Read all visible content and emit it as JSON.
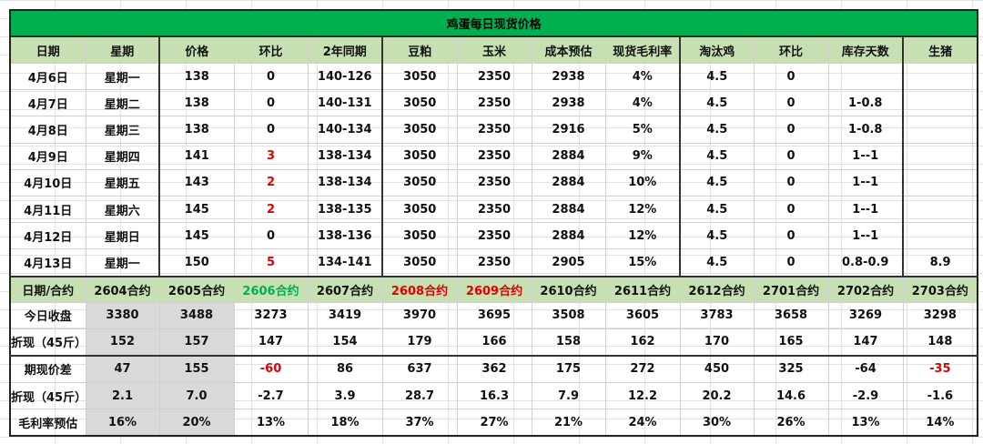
{
  "title": "鸡蛋每日现货价格",
  "daily_headers": [
    "日期",
    "星期",
    "价格",
    "环比",
    "2年同期",
    "豆粕",
    "玉米",
    "成本预估",
    "现货毛利率",
    "淘汰鸡",
    "环比",
    "库存天数",
    "生猪"
  ],
  "daily_rows": [
    [
      "4月6日",
      "星期一",
      "138",
      "0",
      "140-126",
      "3050",
      "2350",
      "2938",
      "4%",
      "4.5",
      "0",
      "",
      ""
    ],
    [
      "4月7日",
      "星期二",
      "138",
      "0",
      "140-131",
      "3050",
      "2350",
      "2938",
      "4%",
      "4.5",
      "0",
      "1-0.8",
      ""
    ],
    [
      "4月8日",
      "星期三",
      "138",
      "0",
      "140-134",
      "3050",
      "2350",
      "2916",
      "5%",
      "4.5",
      "0",
      "1-0.8",
      ""
    ],
    [
      "4月9日",
      "星期四",
      "141",
      "3",
      "138-134",
      "3050",
      "2350",
      "2884",
      "9%",
      "4.5",
      "0",
      "1--1",
      ""
    ],
    [
      "4月10日",
      "星期五",
      "143",
      "2",
      "138-134",
      "3050",
      "2350",
      "2884",
      "10%",
      "4.5",
      "0",
      "1--1",
      ""
    ],
    [
      "4月11日",
      "星期六",
      "145",
      "2",
      "138-135",
      "3050",
      "2350",
      "2884",
      "12%",
      "4.5",
      "0",
      "1--1",
      ""
    ],
    [
      "4月12日",
      "星期日",
      "145",
      "0",
      "138-136",
      "3050",
      "2350",
      "2884",
      "12%",
      "4.5",
      "0",
      "1--1",
      ""
    ],
    [
      "4月13日",
      "星期一",
      "150",
      "5",
      "134-141",
      "3050",
      "2350",
      "2905",
      "15%",
      "4.5",
      "0",
      "0.8-0.9",
      "8.9"
    ]
  ],
  "futures_headers": [
    "日期/合约",
    "2604合约",
    "2605合约",
    "2606合约",
    "2607合约",
    "2608合约",
    "2609合约",
    "2610合约",
    "2611合约",
    "2612合约",
    "2701合约",
    "2702合约",
    "2703合约"
  ],
  "futures_rows": [
    [
      "今日收盘",
      "3380",
      "3488",
      "3273",
      "3419",
      "3970",
      "3695",
      "3508",
      "3605",
      "3783",
      "3658",
      "3269",
      "3298"
    ],
    [
      "折现（45斤）",
      "152",
      "157",
      "147",
      "154",
      "179",
      "166",
      "158",
      "162",
      "170",
      "165",
      "147",
      "148"
    ],
    [
      "期现价差",
      "47",
      "155",
      "-60",
      "86",
      "637",
      "362",
      "175",
      "272",
      "450",
      "325",
      "-64",
      "-35"
    ],
    [
      "折现（45斤）",
      "2.1",
      "7.0",
      "-2.7",
      "3.9",
      "28.7",
      "16.3",
      "7.9",
      "12.2",
      "20.2",
      "14.6",
      "-2.9",
      "-1.6"
    ],
    [
      "毛利率预估",
      "16%",
      "20%",
      "13%",
      "18%",
      "37%",
      "27%",
      "21%",
      "24%",
      "30%",
      "26%",
      "13%",
      "14%"
    ]
  ],
  "colors": {
    "title_bg": "#00b050",
    "header_bg": "#c6e0b4",
    "highlight_red": "#e00000",
    "highlight_green": "#00b050",
    "grey_col": "#d9d9d9"
  }
}
